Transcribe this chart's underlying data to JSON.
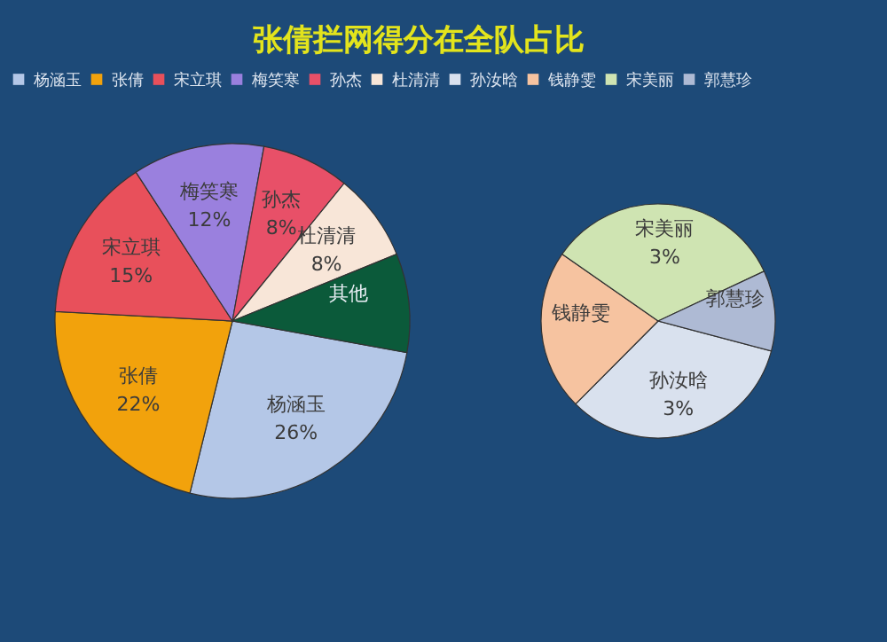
{
  "chart_data": [
    {
      "type": "pie",
      "title": "张倩拦网得分在全队占比",
      "legend": "top",
      "categories": [
        "杨涵玉",
        "张倩",
        "宋立琪",
        "梅笑寒",
        "孙杰",
        "杜清清",
        "其他"
      ],
      "values": [
        26,
        22,
        15,
        12,
        8,
        8,
        9
      ],
      "value_labels": [
        "26%",
        "22%",
        "15%",
        "12%",
        "8%",
        "8%",
        null
      ],
      "colors": [
        "#b4c7e7",
        "#f2a20c",
        "#e8505b",
        "#9a80de",
        "#e85068",
        "#f8e6d8",
        "#0b5a3a"
      ]
    },
    {
      "type": "pie",
      "legend": "top",
      "categories": [
        "孙汝晗",
        "钱静雯",
        "宋美丽",
        "郭慧珍"
      ],
      "values": [
        3,
        2,
        3,
        1
      ],
      "value_labels": [
        "3%",
        null,
        "3%",
        null
      ],
      "colors": [
        "#d9e1ee",
        "#f6c3a0",
        "#cfe4b2",
        "#aebad4"
      ]
    }
  ]
}
